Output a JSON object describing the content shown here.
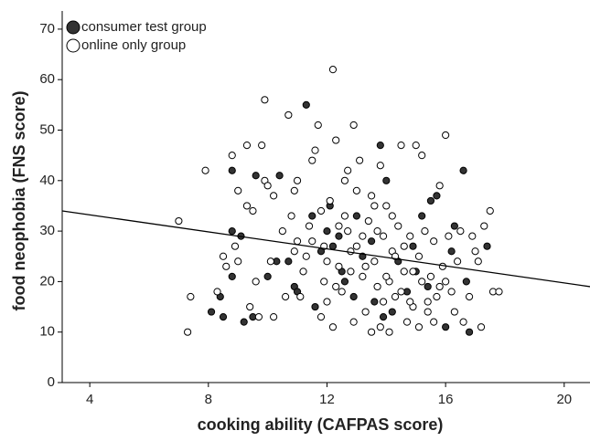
{
  "chart_data": {
    "type": "scatter",
    "xlabel": "cooking ability (CAFPAS score)",
    "ylabel": "food neophobia (FNS score)",
    "xlim": [
      3.07,
      20.87
    ],
    "ylim": [
      0,
      73.6
    ],
    "xticks": [
      4,
      8,
      12,
      16,
      20
    ],
    "yticks": [
      0,
      10,
      20,
      30,
      40,
      50,
      60,
      70
    ],
    "legend": "upper left",
    "series": [
      {
        "name": "consumer test group",
        "color": "#333333",
        "x": [
          11.3,
          9.6,
          10.4,
          8.8,
          16.6,
          13.8,
          14.0,
          15.7,
          15.5,
          11.5,
          12.0,
          13.5,
          9.1,
          8.8,
          8.8,
          10.0,
          10.7,
          10.9,
          11.0,
          8.4,
          8.1,
          9.5,
          8.5,
          9.2,
          10.3,
          12.6,
          13.9,
          14.2,
          16.0,
          16.8,
          17.4,
          16.7,
          16.3,
          15.0,
          14.4,
          12.2,
          12.5,
          13.2,
          14.7,
          15.4,
          12.4,
          11.8,
          13.0,
          15.2,
          16.2,
          12.9,
          11.6,
          13.6,
          14.9,
          12.1
        ],
        "values": [
          55,
          41,
          41,
          42,
          42,
          47,
          40,
          37,
          36,
          33,
          30,
          28,
          29,
          30,
          21,
          21,
          24,
          19,
          18,
          17,
          14,
          13,
          13,
          12,
          24,
          20,
          13,
          14,
          11,
          10,
          27,
          20,
          31,
          22,
          24,
          27,
          22,
          25,
          18,
          19,
          29,
          26,
          33,
          33,
          26,
          17,
          15,
          16,
          27,
          35
        ]
      },
      {
        "name": "online only group",
        "color": "#ffffff",
        "x": [
          7.0,
          7.3,
          7.4,
          7.9,
          8.3,
          8.5,
          8.6,
          8.8,
          8.9,
          9.0,
          9.3,
          9.3,
          9.5,
          9.4,
          9.6,
          9.7,
          9.8,
          9.9,
          9.9,
          10.0,
          10.2,
          10.2,
          10.5,
          10.7,
          10.8,
          10.9,
          11.0,
          11.0,
          11.1,
          11.2,
          11.4,
          11.5,
          11.6,
          11.7,
          11.8,
          11.9,
          12.0,
          12.1,
          12.2,
          12.3,
          12.4,
          12.5,
          12.6,
          12.7,
          12.8,
          12.9,
          13.0,
          13.1,
          13.2,
          13.3,
          13.4,
          13.5,
          13.6,
          13.7,
          13.8,
          13.9,
          14.0,
          14.1,
          14.2,
          14.3,
          14.4,
          14.5,
          14.6,
          14.7,
          14.8,
          14.9,
          15.0,
          15.1,
          15.2,
          15.3,
          15.4,
          15.5,
          15.6,
          15.7,
          15.8,
          15.9,
          16.0,
          16.1,
          16.2,
          16.3,
          16.4,
          16.5,
          16.6,
          16.8,
          16.9,
          17.0,
          17.1,
          17.2,
          17.3,
          17.5,
          17.6,
          17.8,
          12.0,
          12.2,
          11.3,
          11.8,
          12.6,
          13.0,
          13.3,
          13.7,
          14.0,
          14.3,
          14.5,
          14.8,
          15.2,
          15.6,
          10.6,
          10.9,
          13.5,
          14.1,
          12.9,
          11.5,
          13.8,
          12.4,
          14.9,
          15.8,
          13.2,
          12.7,
          11.9,
          12.3,
          13.6,
          14.6,
          15.4,
          16.0,
          9.0,
          10.1,
          13.9,
          14.2,
          15.1,
          12.8
        ],
        "values": [
          32,
          10,
          17,
          42,
          18,
          25,
          23,
          45,
          27,
          38,
          47,
          35,
          34,
          15,
          20,
          13,
          47,
          56,
          40,
          39,
          37,
          13,
          30,
          53,
          33,
          38,
          40,
          28,
          17,
          22,
          31,
          44,
          46,
          51,
          13,
          20,
          24,
          36,
          62,
          48,
          31,
          18,
          40,
          42,
          26,
          51,
          38,
          44,
          21,
          14,
          32,
          37,
          24,
          19,
          11,
          29,
          35,
          20,
          26,
          17,
          31,
          47,
          22,
          12,
          29,
          15,
          47,
          25,
          45,
          30,
          14,
          21,
          28,
          17,
          39,
          23,
          49,
          29,
          18,
          14,
          24,
          30,
          12,
          17,
          29,
          26,
          24,
          11,
          31,
          34,
          18,
          18,
          16,
          11,
          25,
          34,
          33,
          27,
          23,
          30,
          21,
          25,
          18,
          16,
          20,
          12,
          17,
          26,
          10,
          10,
          12,
          28,
          43,
          23,
          22,
          19,
          29,
          30,
          27,
          19,
          35,
          27,
          16,
          20,
          24,
          24,
          16,
          33,
          11,
          22
        ]
      }
    ],
    "trend_line": {
      "x": [
        3.07,
        20.87
      ],
      "y": [
        34,
        19
      ]
    }
  }
}
